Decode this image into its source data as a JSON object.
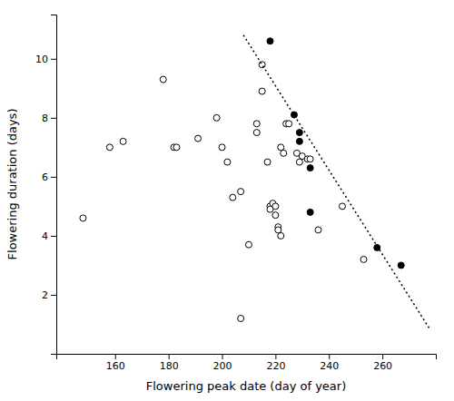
{
  "chart_data": {
    "type": "scatter",
    "xlabel": "Flowering peak date (day of year)",
    "ylabel": "Flowering duration (days)",
    "xlim": [
      138,
      280
    ],
    "ylim": [
      0,
      11.5
    ],
    "xticks": [
      160,
      180,
      200,
      220,
      240,
      260
    ],
    "yticks": [
      2,
      4,
      6,
      8,
      10
    ],
    "grid": false,
    "series": [
      {
        "type": "scatter",
        "marker": "open",
        "color": "black",
        "x": [
          148,
          158,
          163,
          178,
          182,
          183,
          191,
          198,
          200,
          202,
          204,
          207,
          210,
          213,
          213,
          215,
          215,
          217,
          218,
          218,
          219,
          220,
          220,
          221,
          221,
          222,
          222,
          223,
          224,
          225,
          228,
          229,
          230,
          232,
          233,
          236,
          245,
          253,
          207
        ],
        "values": [
          4.6,
          7.0,
          7.2,
          9.3,
          7.0,
          7.0,
          7.3,
          8.0,
          7.0,
          6.5,
          5.3,
          5.5,
          3.7,
          7.8,
          7.5,
          9.8,
          8.9,
          6.5,
          5.0,
          4.9,
          5.1,
          5.0,
          4.7,
          4.3,
          4.2,
          4.0,
          7.0,
          6.8,
          7.8,
          7.8,
          6.8,
          6.5,
          6.7,
          6.6,
          6.6,
          4.2,
          5.0,
          3.2,
          1.2
        ]
      },
      {
        "type": "scatter",
        "marker": "filled",
        "color": "black",
        "x": [
          218,
          227,
          229,
          229,
          233,
          233,
          258,
          267
        ],
        "values": [
          10.6,
          8.1,
          7.5,
          7.2,
          6.3,
          4.8,
          3.6,
          3.0
        ]
      },
      {
        "type": "line",
        "line_style": "dotted",
        "color": "black",
        "x": [
          208,
          278
        ],
        "values": [
          10.8,
          0.8
        ]
      }
    ]
  }
}
